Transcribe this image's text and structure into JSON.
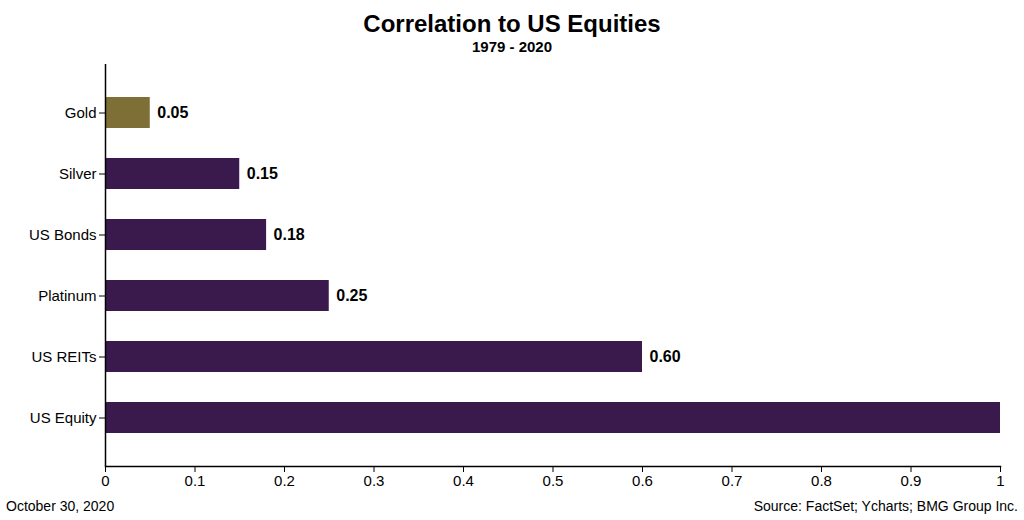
{
  "chart_data": {
    "type": "bar",
    "title": "Correlation to US Equities",
    "subtitle": "1979 - 2020",
    "orientation": "horizontal",
    "categories": [
      "Gold",
      "Silver",
      "US Bonds",
      "Platinum",
      "US REITs",
      "US Equity"
    ],
    "values": [
      0.05,
      0.15,
      0.18,
      0.25,
      0.6,
      1
    ],
    "value_labels": [
      "0.05",
      "0.15",
      "0.18",
      "0.25",
      "0.60",
      null
    ],
    "colors": [
      "#7d6f35",
      "#3a1a4c",
      "#3a1a4c",
      "#3a1a4c",
      "#3a1a4c",
      "#3a1a4c"
    ],
    "xlim": [
      0,
      1
    ],
    "xticks": [
      0,
      0.1,
      0.2,
      0.3,
      0.4,
      0.5,
      0.6,
      0.7,
      0.8,
      0.9,
      1
    ],
    "grid": false,
    "data_labels": true,
    "date": "October 30, 2020",
    "source": "Source: FactSet; Ycharts; BMG Group Inc."
  }
}
